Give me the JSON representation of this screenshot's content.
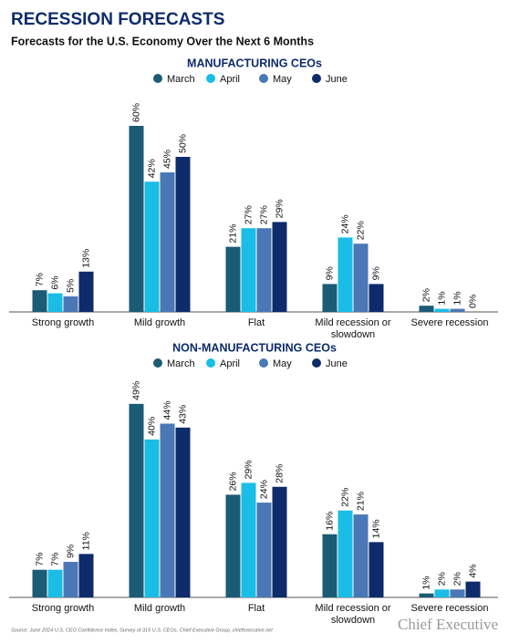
{
  "header": {
    "title": "RECESSION FORECASTS",
    "subtitle": "Forecasts for the U.S. Economy Over the Next 6 Months"
  },
  "chart_data": [
    {
      "type": "bar",
      "title": "MANUFACTURING CEOs",
      "categories": [
        "Strong growth",
        "Mild growth",
        "Flat",
        "Mild recession or slowdown",
        "Severe recession"
      ],
      "series": [
        {
          "name": "March",
          "color": "#1b5b74",
          "values": [
            7,
            60,
            21,
            9,
            2
          ],
          "value_labels": [
            "7%",
            "60%",
            "21%",
            "9%",
            "2%"
          ]
        },
        {
          "name": "April",
          "color": "#19bde6",
          "values": [
            6,
            42,
            27,
            24,
            1
          ],
          "value_labels": [
            "6%",
            "42%",
            "27%",
            "24%",
            "1%"
          ]
        },
        {
          "name": "May",
          "color": "#4a78b6",
          "values": [
            5,
            45,
            27,
            22,
            1
          ],
          "value_labels": [
            "5%",
            "45%",
            "27%",
            "22%",
            "1%"
          ]
        },
        {
          "name": "June",
          "color": "#0e2b6b",
          "values": [
            13,
            50,
            29,
            9,
            0
          ],
          "value_labels": [
            "13%",
            "50%",
            "29%",
            "9%",
            "0%"
          ]
        }
      ]
    },
    {
      "type": "bar",
      "title": "NON-MANUFACTURING CEOs",
      "categories": [
        "Strong growth",
        "Mild growth",
        "Flat",
        "Mild recession or slowdown",
        "Severe recession"
      ],
      "series": [
        {
          "name": "March",
          "color": "#1b5b74",
          "values": [
            7,
            49,
            26,
            16,
            1
          ],
          "value_labels": [
            "7%",
            "49%",
            "26%",
            "16%",
            "1%"
          ]
        },
        {
          "name": "April",
          "color": "#19bde6",
          "values": [
            7,
            40,
            29,
            22,
            2
          ],
          "value_labels": [
            "7%",
            "40%",
            "29%",
            "22%",
            "2%"
          ]
        },
        {
          "name": "May",
          "color": "#4a78b6",
          "values": [
            9,
            44,
            24,
            21,
            2
          ],
          "value_labels": [
            "9%",
            "44%",
            "24%",
            "21%",
            "2%"
          ]
        },
        {
          "name": "June",
          "color": "#0e2b6b",
          "values": [
            11,
            43,
            28,
            14,
            4
          ],
          "value_labels": [
            "11%",
            "43%",
            "28%",
            "14%",
            "4%"
          ]
        }
      ]
    }
  ],
  "footer": {
    "source": "Source: June 2024 U.S. CEO Confidence Index, Survey of 315 U.S. CEOs, Chief Executive Group, chiefexecutive.net",
    "logo": "Chief Executive"
  }
}
